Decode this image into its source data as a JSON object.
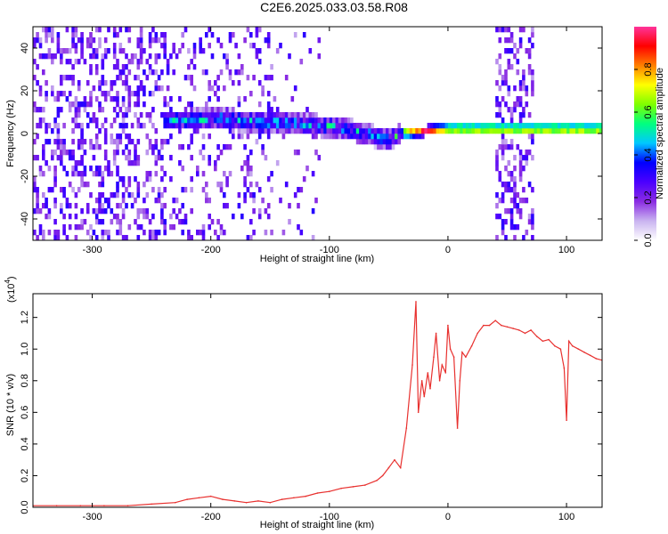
{
  "title": "C2E6.2025.033.03.58.R08",
  "colors": {
    "line": "#e8312f",
    "background": "#ffffff"
  },
  "chart_data": [
    {
      "type": "heatmap",
      "xlabel": "Height of straight line (km)",
      "ylabel": "Frequency (Hz)",
      "xlim": [
        -350,
        130
      ],
      "ylim": [
        -50,
        50
      ],
      "xticks": [
        -300,
        -200,
        -100,
        0,
        100
      ],
      "xtick_labels": [
        "-300",
        "-200",
        "-100",
        "0",
        "100"
      ],
      "yticks": [
        -40,
        -20,
        0,
        20,
        40
      ],
      "ytick_labels": [
        "-40",
        "-20",
        "0",
        "20",
        "40"
      ],
      "colorbar": {
        "label": "Normalized spectral amplitude",
        "range": [
          0,
          1
        ],
        "ticks": [
          0.0,
          0.2,
          0.4,
          0.6,
          0.8
        ],
        "tick_labels": [
          "0.0",
          "0.2",
          "0.4",
          "0.6",
          "0.8"
        ],
        "colormap": [
          "#ffffff",
          "#c9b3f0",
          "#8a2be2",
          "#4b00ff",
          "#0000ff",
          "#00c8ff",
          "#00ff7f",
          "#7fff00",
          "#ffff00",
          "#ff8000",
          "#ff0000",
          "#ff3399"
        ]
      },
      "ridge": {
        "x": [
          -240,
          -220,
          -200,
          -180,
          -160,
          -140,
          -120,
          -100,
          -80,
          -60,
          -50,
          -40,
          -20,
          0,
          20,
          35
        ],
        "y": [
          5,
          5,
          6,
          5,
          4,
          4,
          3,
          2,
          0,
          -3,
          -4,
          -1,
          0,
          1,
          1,
          1
        ]
      },
      "noise_bands": [
        {
          "x": [
            -350,
            -240
          ],
          "level": 0.35
        },
        {
          "x": [
            -240,
            -150
          ],
          "level": 0.18
        },
        {
          "x": [
            -150,
            -110
          ],
          "level": 0.06
        },
        {
          "x": [
            40,
            70
          ],
          "level": 0.35
        }
      ]
    },
    {
      "type": "line",
      "xlabel": "Height of straight line (km)",
      "ylabel": "SNR (10 * v/v)",
      "y_scale_note": "(x10",
      "y_scale_exp": "4",
      "y_scale_suffix": ")",
      "xlim": [
        -350,
        130
      ],
      "ylim": [
        0,
        1.35
      ],
      "xticks": [
        -300,
        -200,
        -100,
        0,
        100
      ],
      "xtick_labels": [
        "-300",
        "-200",
        "-100",
        "0",
        "100"
      ],
      "yticks": [
        0.0,
        0.2,
        0.4,
        0.6,
        0.8,
        1.0,
        1.2
      ],
      "ytick_labels": [
        "0.0",
        "0.2",
        "0.4",
        "0.6",
        "0.8",
        "1.0",
        "1.2"
      ],
      "series": [
        {
          "x": [
            -350,
            -330,
            -310,
            -290,
            -270,
            -250,
            -230,
            -220,
            -210,
            -200,
            -190,
            -180,
            -170,
            -160,
            -150,
            -140,
            -130,
            -120,
            -110,
            -100,
            -90,
            -80,
            -70,
            -60,
            -55,
            -50,
            -45,
            -40,
            -35,
            -30,
            -27,
            -25,
            -22,
            -20,
            -17,
            -15,
            -12,
            -10,
            -7,
            -5,
            -2,
            0,
            2,
            5,
            8,
            10,
            12,
            15,
            20,
            25,
            30,
            35,
            40,
            45,
            50,
            55,
            60,
            65,
            70,
            75,
            80,
            85,
            90,
            95,
            98,
            100,
            102,
            105,
            110,
            115,
            120,
            125,
            130
          ],
          "y": [
            0.01,
            0.01,
            0.01,
            0.01,
            0.01,
            0.02,
            0.03,
            0.05,
            0.06,
            0.07,
            0.05,
            0.04,
            0.03,
            0.04,
            0.03,
            0.05,
            0.06,
            0.07,
            0.09,
            0.1,
            0.12,
            0.13,
            0.14,
            0.17,
            0.2,
            0.25,
            0.3,
            0.25,
            0.5,
            0.9,
            1.3,
            0.6,
            0.8,
            0.7,
            0.85,
            0.75,
            0.95,
            1.1,
            0.8,
            0.9,
            0.85,
            1.15,
            1.0,
            0.95,
            0.5,
            0.8,
            0.98,
            0.95,
            1.02,
            1.1,
            1.15,
            1.15,
            1.18,
            1.15,
            1.14,
            1.13,
            1.12,
            1.1,
            1.12,
            1.08,
            1.05,
            1.06,
            1.02,
            1.0,
            0.88,
            0.55,
            1.05,
            1.02,
            1.0,
            0.98,
            0.96,
            0.94,
            0.93
          ]
        }
      ]
    }
  ]
}
